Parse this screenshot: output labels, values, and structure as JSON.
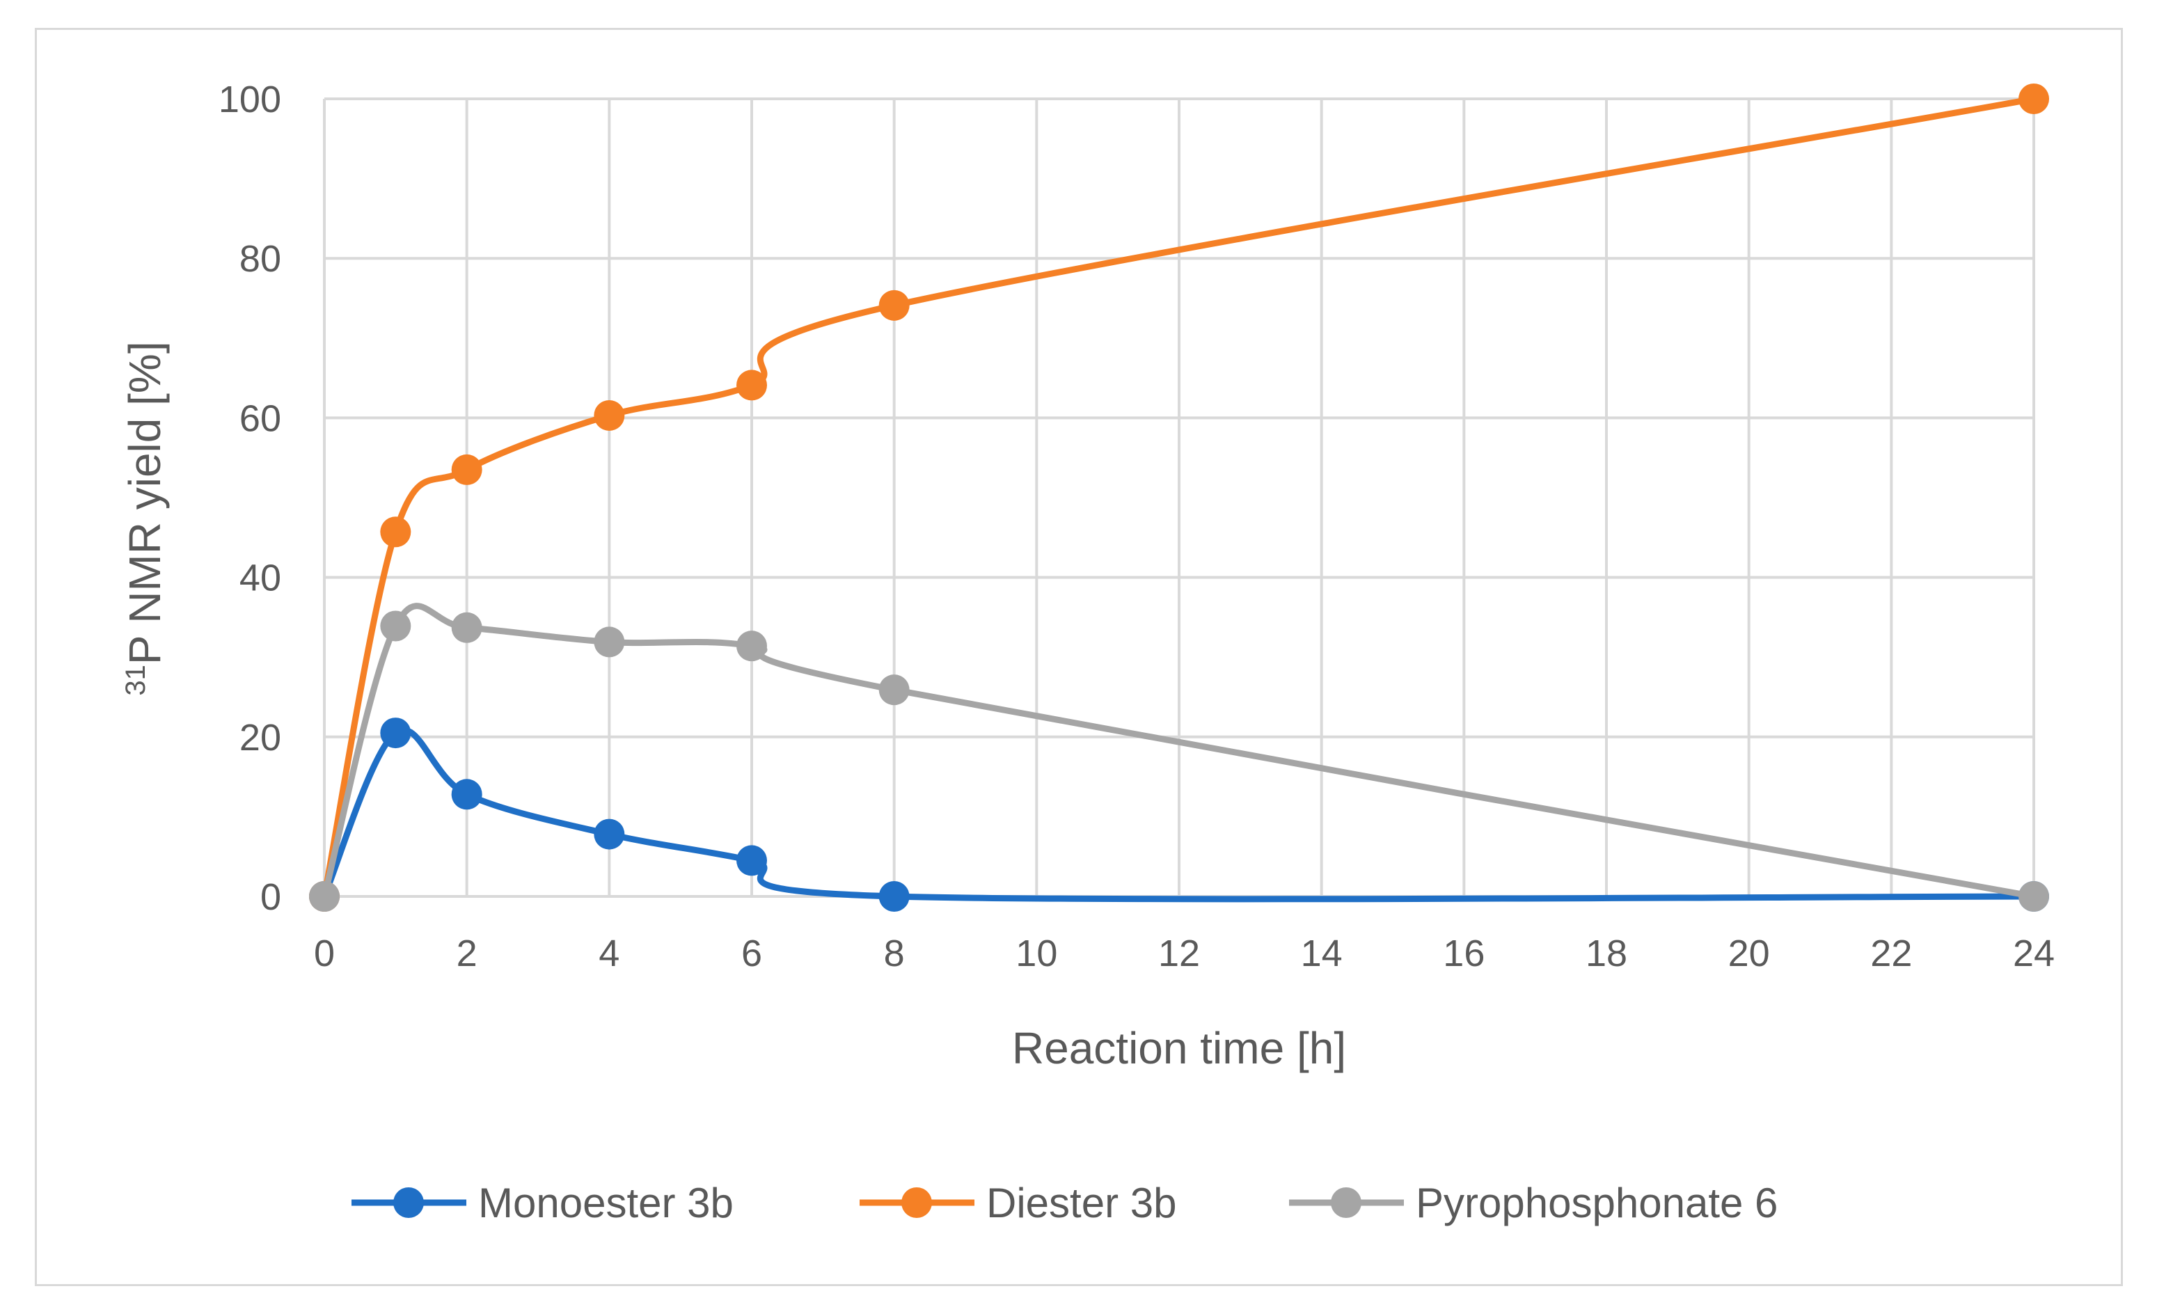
{
  "chart_data": {
    "type": "line",
    "title": "",
    "xlabel": "Reaction time [h]",
    "ylabel_sup": "31",
    "ylabel": "P NMR  yield [%]",
    "xlim": [
      0,
      24
    ],
    "ylim": [
      0,
      100
    ],
    "x_ticks": [
      "0",
      "2",
      "4",
      "6",
      "8",
      "10",
      "12",
      "14",
      "16",
      "18",
      "20",
      "22",
      "24"
    ],
    "y_ticks": [
      "0",
      "20",
      "40",
      "60",
      "80",
      "100"
    ],
    "grid": true,
    "legend_position": "bottom",
    "series": [
      {
        "name": "Monoester 3b",
        "color": "#1f6fc6",
        "x": [
          0,
          1,
          2,
          4,
          6,
          8,
          24
        ],
        "values": [
          0,
          20.5,
          12.8,
          7.8,
          4.5,
          0,
          0
        ]
      },
      {
        "name": "Diester 3b",
        "color": "#f58025",
        "x": [
          0,
          1,
          2,
          4,
          6,
          8,
          24
        ],
        "values": [
          0,
          45.7,
          53.5,
          60.3,
          64.1,
          74.1,
          100
        ]
      },
      {
        "name": "Pyrophosphonate 6",
        "color": "#a5a5a5",
        "x": [
          0,
          1,
          2,
          4,
          6,
          8,
          24
        ],
        "values": [
          0,
          33.9,
          33.7,
          31.9,
          31.4,
          25.9,
          0
        ]
      }
    ]
  }
}
